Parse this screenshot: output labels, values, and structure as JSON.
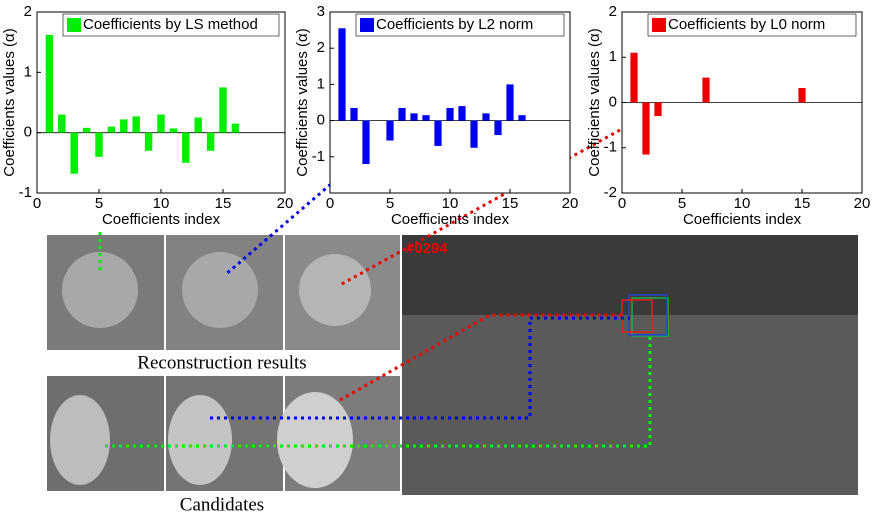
{
  "chart_data": [
    {
      "type": "bar",
      "series": [
        {
          "name": "Coefficients by LS method",
          "color": "#00ee00",
          "x": [
            1,
            2,
            3,
            4,
            5,
            6,
            7,
            8,
            9,
            10,
            11,
            12,
            13,
            14,
            15,
            16
          ],
          "values": [
            1.62,
            0.3,
            -0.68,
            0.08,
            -0.4,
            0.1,
            0.22,
            0.27,
            -0.3,
            0.3,
            0.07,
            -0.5,
            0.25,
            -0.3,
            0.75,
            0.15
          ]
        }
      ],
      "xlabel": "Coefficients index",
      "ylabel": "Coefficients values (α)",
      "xlim": [
        0,
        20
      ],
      "xticks": [
        0,
        5,
        10,
        15,
        20
      ],
      "ylim": [
        -1,
        2
      ],
      "yticks": [
        -1,
        0,
        1,
        2
      ]
    },
    {
      "type": "bar",
      "series": [
        {
          "name": "Coefficients by L2 norm",
          "color": "#0000ee",
          "x": [
            1,
            2,
            3,
            5,
            6,
            7,
            8,
            9,
            10,
            11,
            12,
            13,
            14,
            15,
            16
          ],
          "values": [
            2.55,
            0.35,
            -1.2,
            -0.55,
            0.35,
            0.2,
            0.15,
            -0.7,
            0.35,
            0.4,
            -0.75,
            0.2,
            -0.4,
            1.0,
            0.15
          ]
        }
      ],
      "xlabel": "Coefficients index",
      "ylabel": "Coefficients values (α)",
      "xlim": [
        0,
        20
      ],
      "xticks": [
        0,
        5,
        10,
        15,
        20
      ],
      "ylim": [
        -2,
        3
      ],
      "yticks": [
        -1,
        0,
        1,
        2,
        3
      ]
    },
    {
      "type": "bar",
      "series": [
        {
          "name": "Coefficients by L0 norm",
          "color": "#ee0000",
          "x": [
            1,
            2,
            3,
            7,
            15
          ],
          "values": [
            1.1,
            -1.15,
            -0.3,
            0.55,
            0.32
          ]
        }
      ],
      "xlabel": "Coefficients index",
      "ylabel": "Coefficients values (α)",
      "xlim": [
        0,
        20
      ],
      "xticks": [
        0,
        5,
        10,
        15,
        20
      ],
      "ylim": [
        -2,
        2
      ],
      "yticks": [
        -2,
        -1,
        0,
        1,
        2
      ]
    }
  ],
  "labels": {
    "reconstruction": "Reconstruction results",
    "candidates": "Candidates",
    "frame": "#0294"
  }
}
